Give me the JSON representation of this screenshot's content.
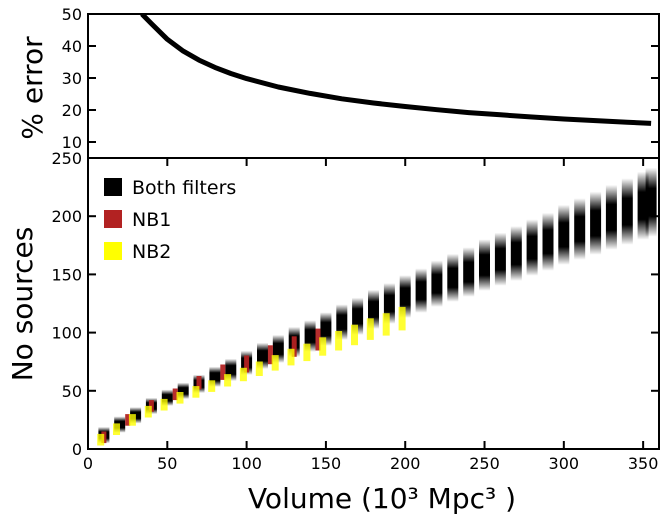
{
  "chart_data": [
    {
      "type": "line",
      "ylabel": "% error",
      "xlim": [
        0,
        360
      ],
      "ylim": [
        5,
        50
      ],
      "yticks": [
        10,
        20,
        30,
        40,
        50
      ],
      "grid": false,
      "series": [
        {
          "color": "#000000",
          "x": [
            34,
            40,
            50,
            60,
            70,
            80,
            90,
            100,
            120,
            140,
            160,
            180,
            200,
            220,
            240,
            260,
            280,
            300,
            320,
            340,
            355
          ],
          "y": [
            50,
            47.0,
            42.1,
            38.4,
            35.6,
            33.3,
            31.4,
            29.8,
            27.2,
            25.2,
            23.5,
            22.2,
            21.1,
            20.1,
            19.2,
            18.5,
            17.8,
            17.2,
            16.7,
            16.2,
            15.8
          ]
        }
      ]
    },
    {
      "type": "scatter",
      "xlabel": "Volume (10³ Mpc³ )",
      "ylabel": "No sources",
      "xlim": [
        0,
        360
      ],
      "ylim": [
        0,
        250
      ],
      "xticks": [
        0,
        50,
        100,
        150,
        200,
        250,
        300,
        350
      ],
      "yticks": [
        0,
        50,
        100,
        150,
        200,
        250
      ],
      "grid": false,
      "legend_position": "top-left",
      "series": [
        {
          "name": "Both filters",
          "color": "#000000",
          "x": [
            10,
            20,
            30,
            40,
            50,
            60,
            70,
            80,
            90,
            100,
            110,
            120,
            130,
            140,
            150,
            160,
            170,
            180,
            190,
            200,
            210,
            220,
            230,
            240,
            250,
            260,
            270,
            280,
            290,
            300,
            310,
            320,
            330,
            340,
            350,
            355
          ],
          "y": [
            12,
            21,
            29,
            37,
            44,
            50,
            56,
            62,
            68,
            74,
            80,
            86,
            92,
            97,
            103,
            109,
            114,
            120,
            125,
            131,
            136,
            142,
            147,
            152,
            158,
            163,
            168,
            173,
            178,
            184,
            189,
            194,
            199,
            204,
            209,
            212
          ]
        },
        {
          "name": "NB1",
          "color": "#b22222",
          "x": [
            10,
            25,
            40,
            55,
            70,
            85,
            100,
            115,
            130,
            145
          ],
          "y": [
            10,
            25,
            37,
            47,
            57,
            66,
            73,
            81,
            88,
            94
          ]
        },
        {
          "name": "NB2",
          "color": "#ffff00",
          "x": [
            8,
            18,
            28,
            38,
            48,
            58,
            68,
            78,
            88,
            98,
            108,
            118,
            128,
            138,
            148,
            158,
            168,
            178,
            188,
            198
          ],
          "y": [
            8,
            17,
            25,
            32,
            38,
            44,
            49,
            54,
            59,
            64,
            69,
            74,
            79,
            83,
            88,
            93,
            98,
            103,
            107,
            112
          ]
        }
      ]
    }
  ]
}
